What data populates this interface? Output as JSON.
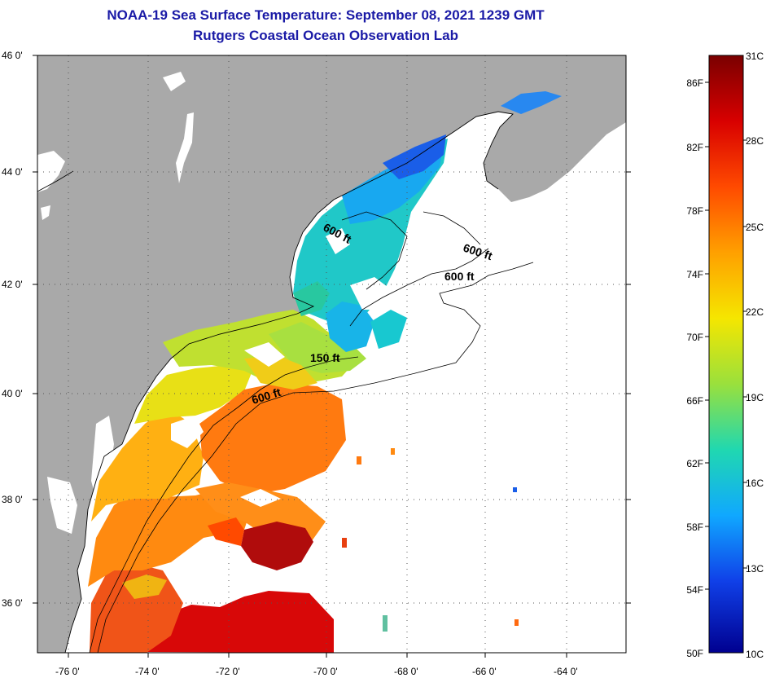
{
  "title": "NOAA-19 Sea Surface Temperature:  September 08, 2021 1239 GMT",
  "subtitle": "Rutgers Coastal Ocean Observation Lab",
  "map": {
    "lat_labels": [
      "46 0'",
      "44 0'",
      "42 0'",
      "40 0'",
      "38 0'",
      "36 0'"
    ],
    "lon_labels": [
      "-76 0'",
      "-74 0'",
      "-72 0'",
      "-70 0'",
      "-68 0'",
      "-66 0'",
      "-64 0'"
    ],
    "contour_labels": [
      "600 ft",
      "600 ft",
      "600 ft",
      "150 ft",
      "600 ft"
    ]
  },
  "colorbar": {
    "fahrenheit_labels": [
      "86F",
      "82F",
      "78F",
      "74F",
      "70F",
      "66F",
      "62F",
      "58F",
      "54F",
      "50F"
    ],
    "celsius_labels": [
      "31C",
      "28C",
      "25C",
      "22C",
      "19C",
      "16C",
      "13C",
      "10C"
    ],
    "colors": [
      "#7a0000",
      "#d80000",
      "#ff4a00",
      "#ffa000",
      "#f5e600",
      "#9ae03c",
      "#20d8b0",
      "#10a8ff",
      "#1040e8",
      "#000090"
    ]
  }
}
